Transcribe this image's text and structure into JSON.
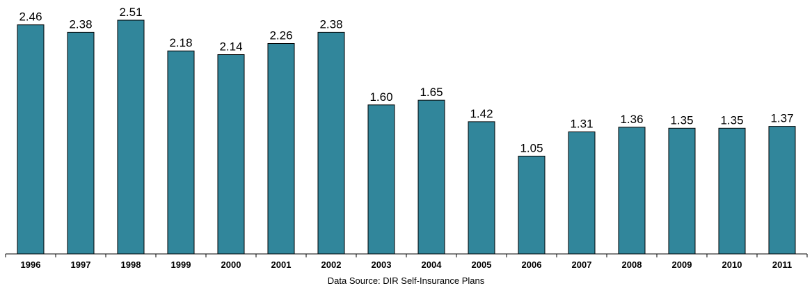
{
  "chart_data": {
    "type": "bar",
    "categories": [
      "1996",
      "1997",
      "1998",
      "1999",
      "2000",
      "2001",
      "2002",
      "2003",
      "2004",
      "2005",
      "2006",
      "2007",
      "2008",
      "2009",
      "2010",
      "2011"
    ],
    "values": [
      2.46,
      2.38,
      2.51,
      2.18,
      2.14,
      2.26,
      2.38,
      1.6,
      1.65,
      1.42,
      1.05,
      1.31,
      1.36,
      1.35,
      1.35,
      1.37
    ],
    "value_labels": [
      "2.46",
      "2.38",
      "2.51",
      "2.18",
      "2.14",
      "2.26",
      "2.38",
      "1.60",
      "1.65",
      "1.42",
      "1.05",
      "1.31",
      "1.36",
      "1.35",
      "1.35",
      "1.37"
    ],
    "ylim": [
      0,
      2.51
    ],
    "bar_color": "#31869b",
    "grid": false,
    "legend": "none"
  },
  "footer": {
    "source_text": "Data Source:  DIR Self-Insurance Plans"
  }
}
